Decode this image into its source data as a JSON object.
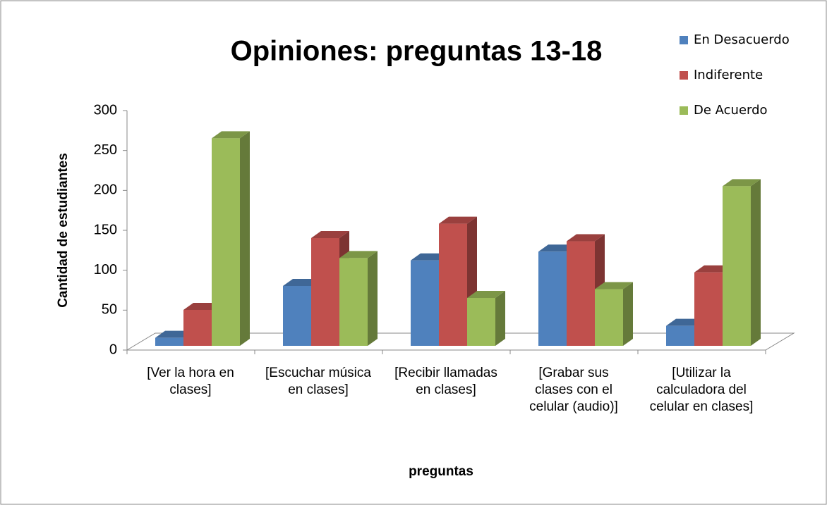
{
  "chart_data": {
    "type": "bar3d",
    "title": "Opiniones: preguntas 13-18",
    "x_label": "preguntas",
    "y_label": "Cantidad de estudiantes",
    "categories": [
      "[Ver la hora en clases]",
      "[Escuchar música en clases]",
      "[Recibir llamadas en clases]",
      "[Grabar sus clases con el celular (audio)]",
      "[Utilizar la calculadora del celular en clases]"
    ],
    "series": [
      {
        "name": "En Desacuerdo",
        "color": "#4f81bd",
        "values": [
          10,
          75,
          107,
          118,
          25
        ]
      },
      {
        "name": "Indiferente",
        "color": "#c0504d",
        "values": [
          45,
          135,
          153,
          131,
          92
        ]
      },
      {
        "name": "De Acuerdo",
        "color": "#9bbb59",
        "values": [
          260,
          110,
          60,
          71,
          200
        ]
      }
    ],
    "ylim": [
      0,
      300
    ],
    "yticks": [
      0,
      50,
      100,
      150,
      200,
      250,
      300
    ],
    "legend": "top-right"
  }
}
